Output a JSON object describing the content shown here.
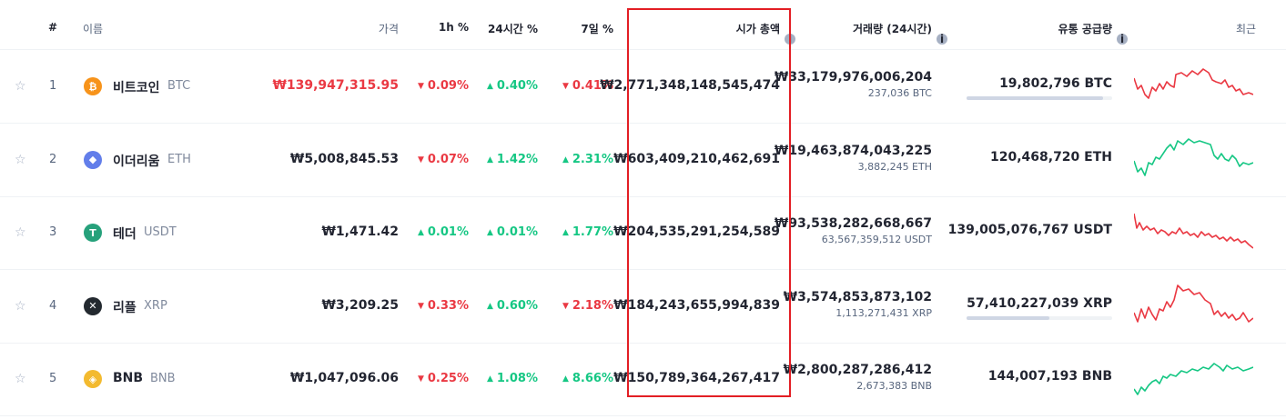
{
  "header": {
    "rank": "#",
    "name": "이름",
    "price": "가격",
    "h1": "1h %",
    "h24": "24시간 %",
    "d7": "7일 %",
    "market_cap": "시가 총액",
    "volume": "거래량 (24시간)",
    "supply": "유통 공급량",
    "last7": "최근"
  },
  "rows": [
    {
      "rank": "1",
      "name": "비트코인",
      "symbol": "BTC",
      "icon": "bitcoin-icon",
      "icon_char": "₿",
      "icon_color": "#f7931a",
      "price": "₩139,947,315.95",
      "price_color": "#ea3943",
      "h1": "0.09%",
      "h1_dir": "down",
      "h24": "0.40%",
      "h24_dir": "up",
      "d7": "0.41%",
      "d7_dir": "down",
      "market_cap": "₩2,771,348,148,545,474",
      "volume": "₩33,179,976,006,204",
      "volume_sub": "237,036 BTC",
      "supply": "19,802,796 BTC",
      "supply_fraction": 0.94,
      "spark_color": "#ea3943"
    },
    {
      "rank": "2",
      "name": "이더리움",
      "symbol": "ETH",
      "icon": "ethereum-icon",
      "icon_char": "◆",
      "icon_color": "#627eea",
      "price": "₩5,008,845.53",
      "price_color": "#222531",
      "h1": "0.07%",
      "h1_dir": "down",
      "h24": "1.42%",
      "h24_dir": "up",
      "d7": "2.31%",
      "d7_dir": "up",
      "market_cap": "₩603,409,210,462,691",
      "volume": "₩19,463,874,043,225",
      "volume_sub": "3,882,245 ETH",
      "supply": "120,468,720 ETH",
      "supply_fraction": null,
      "spark_color": "#16c784"
    },
    {
      "rank": "3",
      "name": "테더",
      "symbol": "USDT",
      "icon": "tether-icon",
      "icon_char": "T",
      "icon_color": "#26a17b",
      "price": "₩1,471.42",
      "price_color": "#222531",
      "h1": "0.01%",
      "h1_dir": "up",
      "h24": "0.01%",
      "h24_dir": "up",
      "d7": "1.77%",
      "d7_dir": "up",
      "market_cap": "₩204,535,291,254,589",
      "volume": "₩93,538,282,668,667",
      "volume_sub": "63,567,359,512 USDT",
      "supply": "139,005,076,767 USDT",
      "supply_fraction": null,
      "spark_color": "#ea3943"
    },
    {
      "rank": "4",
      "name": "리플",
      "symbol": "XRP",
      "icon": "xrp-icon",
      "icon_char": "✕",
      "icon_color": "#23292f",
      "price": "₩3,209.25",
      "price_color": "#222531",
      "h1": "0.33%",
      "h1_dir": "down",
      "h24": "0.60%",
      "h24_dir": "up",
      "d7": "2.18%",
      "d7_dir": "down",
      "market_cap": "₩184,243,655,994,839",
      "volume": "₩3,574,853,873,102",
      "volume_sub": "1,113,271,431 XRP",
      "supply": "57,410,227,039 XRP",
      "supply_fraction": 0.57,
      "spark_color": "#ea3943"
    },
    {
      "rank": "5",
      "name": "BNB",
      "symbol": "BNB",
      "icon": "bnb-icon",
      "icon_char": "◈",
      "icon_color": "#f3ba2f",
      "price": "₩1,047,096.06",
      "price_color": "#222531",
      "h1": "0.25%",
      "h1_dir": "down",
      "h24": "1.08%",
      "h24_dir": "up",
      "d7": "8.66%",
      "d7_dir": "up",
      "market_cap": "₩150,789,364,267,417",
      "volume": "₩2,800,287,286,412",
      "volume_sub": "2,673,383 BNB",
      "supply": "144,007,193 BNB",
      "supply_fraction": null,
      "spark_color": "#16c784"
    }
  ],
  "colors": {
    "up": "#16c784",
    "down": "#ea3943",
    "highlight": "#e31e24"
  }
}
